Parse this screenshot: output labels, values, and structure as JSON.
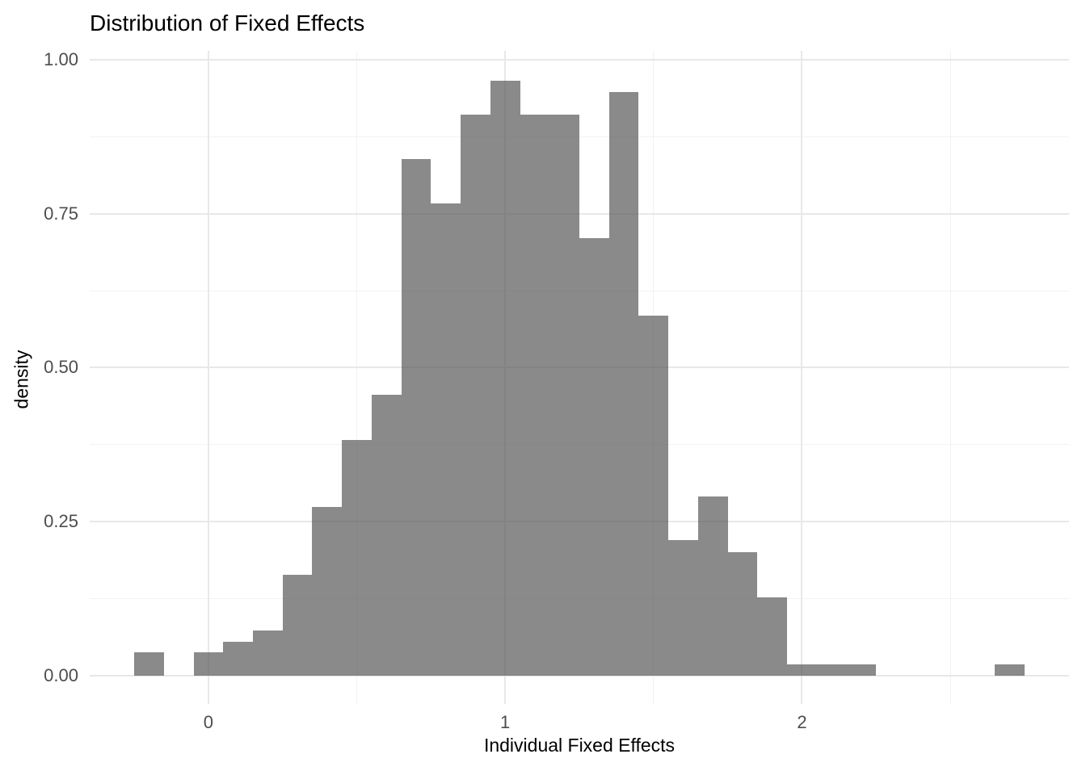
{
  "chart_data": {
    "type": "bar",
    "subtype": "histogram",
    "title": "Distribution of Fixed Effects",
    "xlabel": "Individual Fixed Effects",
    "ylabel": "density",
    "bin_width": 0.1,
    "bins": [
      {
        "x0": -0.25,
        "x1": -0.15,
        "density": 0.037
      },
      {
        "x0": -0.15,
        "x1": -0.05,
        "density": 0
      },
      {
        "x0": -0.05,
        "x1": 0.05,
        "density": 0.037
      },
      {
        "x0": 0.05,
        "x1": 0.15,
        "density": 0.055
      },
      {
        "x0": 0.15,
        "x1": 0.25,
        "density": 0.073
      },
      {
        "x0": 0.25,
        "x1": 0.35,
        "density": 0.164
      },
      {
        "x0": 0.35,
        "x1": 0.45,
        "density": 0.274
      },
      {
        "x0": 0.45,
        "x1": 0.55,
        "density": 0.383
      },
      {
        "x0": 0.55,
        "x1": 0.65,
        "density": 0.456
      },
      {
        "x0": 0.65,
        "x1": 0.75,
        "density": 0.839
      },
      {
        "x0": 0.75,
        "x1": 0.85,
        "density": 0.767
      },
      {
        "x0": 0.85,
        "x1": 0.95,
        "density": 0.911
      },
      {
        "x0": 0.95,
        "x1": 1.05,
        "density": 0.966
      },
      {
        "x0": 1.05,
        "x1": 1.15,
        "density": 0.911
      },
      {
        "x0": 1.15,
        "x1": 1.25,
        "density": 0.911
      },
      {
        "x0": 1.25,
        "x1": 1.35,
        "density": 0.711
      },
      {
        "x0": 1.35,
        "x1": 1.45,
        "density": 0.948
      },
      {
        "x0": 1.45,
        "x1": 1.55,
        "density": 0.584
      },
      {
        "x0": 1.55,
        "x1": 1.65,
        "density": 0.22
      },
      {
        "x0": 1.65,
        "x1": 1.75,
        "density": 0.291
      },
      {
        "x0": 1.75,
        "x1": 1.85,
        "density": 0.2
      },
      {
        "x0": 1.85,
        "x1": 1.95,
        "density": 0.127
      },
      {
        "x0": 1.95,
        "x1": 2.05,
        "density": 0.018
      },
      {
        "x0": 2.05,
        "x1": 2.15,
        "density": 0.018
      },
      {
        "x0": 2.15,
        "x1": 2.25,
        "density": 0.018
      },
      {
        "x0": 2.25,
        "x1": 2.35,
        "density": 0
      },
      {
        "x0": 2.35,
        "x1": 2.45,
        "density": 0
      },
      {
        "x0": 2.45,
        "x1": 2.55,
        "density": 0
      },
      {
        "x0": 2.55,
        "x1": 2.65,
        "density": 0
      },
      {
        "x0": 2.65,
        "x1": 2.75,
        "density": 0.018
      }
    ],
    "x_ticks": [
      {
        "value": 0,
        "label": "0"
      },
      {
        "value": 1,
        "label": "1"
      },
      {
        "value": 2,
        "label": "2"
      }
    ],
    "y_ticks": [
      {
        "value": 0.0,
        "label": "0.00"
      },
      {
        "value": 0.25,
        "label": "0.25"
      },
      {
        "value": 0.5,
        "label": "0.50"
      },
      {
        "value": 0.75,
        "label": "0.75"
      },
      {
        "value": 1.0,
        "label": "1.00"
      }
    ],
    "x_minor_gridlines": [
      0.5,
      1.5,
      2.5
    ],
    "y_minor_gridlines": [
      0.125,
      0.375,
      0.625,
      0.875
    ],
    "xlim": [
      -0.4,
      2.9
    ],
    "ylim": [
      -0.0465,
      1.015
    ],
    "grid": "major-and-minor",
    "legend": "none",
    "colors": {
      "bar_fill": "#595959",
      "bar_alpha": 0.7,
      "background": "#FFFFFF",
      "grid_major": "#E8E8E8",
      "grid_minor": "#F2F2F2",
      "axis_text": "#4D4D4D",
      "title_text": "#000000"
    }
  }
}
